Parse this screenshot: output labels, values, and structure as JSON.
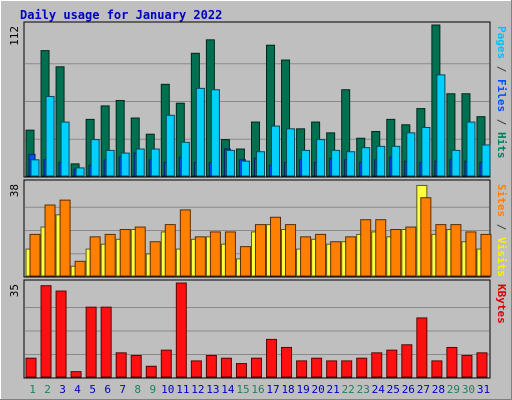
{
  "chart_data": [
    {
      "type": "bar",
      "title": "Daily usage for January 2022",
      "ymax_label": "112",
      "right_label": [
        {
          "text": "Pages",
          "color": "#00c0ff"
        },
        {
          "text": " / ",
          "color": "#404040"
        },
        {
          "text": "Files",
          "color": "#0050ff"
        },
        {
          "text": " / ",
          "color": "#404040"
        },
        {
          "text": "Hits",
          "color": "#008060"
        }
      ],
      "categories": [
        "1",
        "2",
        "3",
        "4",
        "5",
        "6",
        "7",
        "8",
        "9",
        "10",
        "11",
        "12",
        "13",
        "14",
        "15",
        "16",
        "17",
        "18",
        "19",
        "20",
        "21",
        "22",
        "23",
        "24",
        "25",
        "26",
        "27",
        "28",
        "29",
        "30",
        "31"
      ],
      "ylim": [
        0,
        112
      ],
      "series": [
        {
          "name": "Hits",
          "color": "#007050",
          "values": [
            34,
            93,
            81,
            9,
            42,
            52,
            56,
            43,
            31,
            68,
            54,
            91,
            101,
            27,
            20,
            40,
            97,
            86,
            35,
            40,
            32,
            64,
            28,
            33,
            42,
            38,
            50,
            112,
            61,
            61,
            44
          ]
        },
        {
          "name": "Files",
          "color": "#0050ff",
          "values": [
            16,
            12,
            10,
            5,
            8,
            12,
            14,
            17,
            12,
            10,
            14,
            10,
            10,
            20,
            12,
            13,
            8,
            10,
            12,
            10,
            13,
            12,
            10,
            12,
            14,
            11,
            10,
            11,
            12,
            11,
            10
          ]
        },
        {
          "name": "Pages",
          "color": "#00d0ff",
          "values": [
            12,
            59,
            40,
            6,
            27,
            19,
            17,
            20,
            20,
            45,
            25,
            65,
            64,
            19,
            11,
            18,
            37,
            35,
            19,
            27,
            19,
            18,
            21,
            22,
            22,
            32,
            36,
            75,
            19,
            40,
            23
          ]
        }
      ]
    },
    {
      "type": "bar",
      "ymax_label": "38",
      "right_label": [
        {
          "text": "Sites",
          "color": "#ff8000"
        },
        {
          "text": " / ",
          "color": "#404040"
        },
        {
          "text": "Visits",
          "color": "#ffee00"
        }
      ],
      "categories": [
        "1",
        "2",
        "3",
        "4",
        "5",
        "6",
        "7",
        "8",
        "9",
        "10",
        "11",
        "12",
        "13",
        "14",
        "15",
        "16",
        "17",
        "18",
        "19",
        "20",
        "21",
        "22",
        "23",
        "24",
        "25",
        "26",
        "27",
        "28",
        "29",
        "30",
        "31"
      ],
      "ylim": [
        0,
        38
      ],
      "series": [
        {
          "name": "Visits",
          "color": "#ffff40",
          "values": [
            11,
            20,
            25,
            4,
            11,
            13,
            15,
            19,
            9,
            18,
            11,
            15,
            16,
            13,
            7,
            18,
            21,
            19,
            11,
            15,
            13,
            14,
            17,
            18,
            16,
            19,
            37,
            17,
            19,
            14,
            11
          ]
        },
        {
          "name": "Sites",
          "color": "#ff8000",
          "values": [
            17,
            29,
            31,
            6,
            16,
            17,
            19,
            20,
            14,
            21,
            27,
            16,
            18,
            18,
            12,
            21,
            24,
            21,
            16,
            17,
            14,
            16,
            23,
            23,
            19,
            20,
            32,
            21,
            21,
            18,
            17
          ]
        }
      ]
    },
    {
      "type": "bar",
      "ymax_label": "35",
      "right_label": [
        {
          "text": "KBytes",
          "color": "#e00000"
        }
      ],
      "categories": [
        "1",
        "2",
        "3",
        "4",
        "5",
        "6",
        "7",
        "8",
        "9",
        "10",
        "11",
        "12",
        "13",
        "14",
        "15",
        "16",
        "17",
        "18",
        "19",
        "20",
        "21",
        "22",
        "23",
        "24",
        "25",
        "26",
        "27",
        "28",
        "29",
        "30",
        "31"
      ],
      "ylim": [
        0,
        35
      ],
      "series": [
        {
          "name": "KBytes",
          "color": "#ff1010",
          "values": [
            7,
            34,
            32,
            2,
            26,
            26,
            9,
            8,
            4,
            10,
            35,
            6,
            8,
            7,
            5,
            7,
            14,
            11,
            6,
            7,
            6,
            6,
            7,
            9,
            10,
            12,
            22,
            6,
            11,
            8,
            9
          ]
        }
      ]
    }
  ],
  "weekend_days": [
    "1",
    "2",
    "8",
    "9",
    "15",
    "16",
    "22",
    "23",
    "29",
    "30"
  ],
  "colors": {
    "background": "#bfbfbf",
    "frame": "#ffffff",
    "title": "#0000c0",
    "day_weekday": "#0000c0",
    "day_weekend": "#208060"
  }
}
